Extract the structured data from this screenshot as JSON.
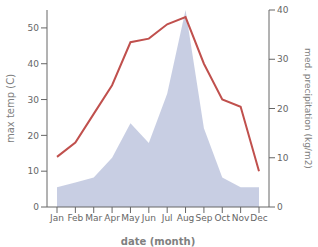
{
  "chart_data": {
    "type": "line",
    "xlabel": "date (month)",
    "ylabel": "max temp (C)",
    "y2label": "med. precipitation (kg/m2)",
    "categories": [
      "Jan",
      "Feb",
      "Mar",
      "Apr",
      "May",
      "Jun",
      "Jul",
      "Aug",
      "Sep",
      "Oct",
      "Nov",
      "Dec"
    ],
    "series": [
      {
        "type": "area",
        "axis": "y2",
        "color": "#aab4d4",
        "values": [
          4,
          5,
          6,
          10,
          17,
          13,
          23,
          40,
          16,
          6,
          4,
          4
        ]
      },
      {
        "type": "line",
        "color": "#c0504d",
        "values": [
          14,
          18,
          26,
          34,
          46,
          47,
          51,
          53,
          40,
          30,
          28,
          10
        ]
      }
    ],
    "ylim": [
      0,
      55
    ],
    "yticks": [
      0,
      10,
      20,
      30,
      40,
      50
    ],
    "y2lim": [
      0,
      40
    ],
    "y2ticks": [
      0,
      10,
      20,
      30,
      40
    ],
    "grid": false
  }
}
